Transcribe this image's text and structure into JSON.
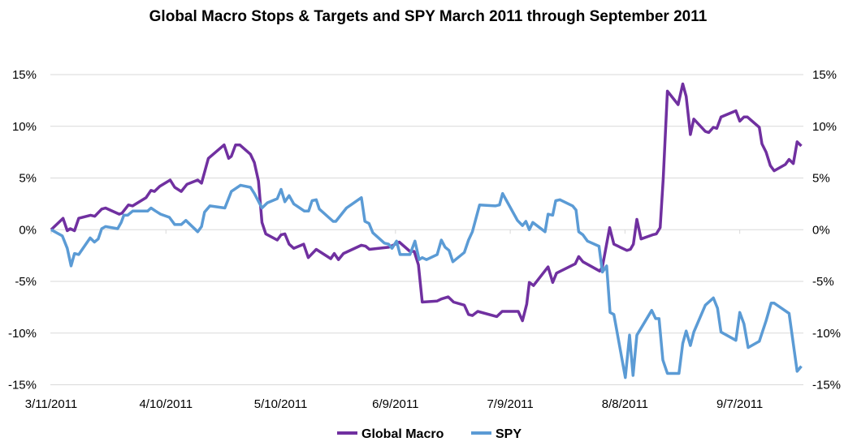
{
  "chart_data": {
    "type": "line",
    "title": "Global Macro Stops & Targets and SPY March 2011 through September 2011",
    "xlabel": "",
    "ylabel": "",
    "x_unit": "days since 3/11/2011",
    "xlim": [
      0,
      196
    ],
    "ylim": [
      -15,
      15
    ],
    "x_tick_values": [
      0,
      30,
      60,
      90,
      120,
      150,
      180
    ],
    "x_tick_labels": [
      "3/11/2011",
      "4/10/2011",
      "5/10/2011",
      "6/9/2011",
      "7/9/2011",
      "8/8/2011",
      "9/7/2011"
    ],
    "y_tick_values": [
      15,
      10,
      5,
      0,
      -5,
      -10,
      -15
    ],
    "y_tick_labels": [
      "15%",
      "10%",
      "5%",
      "0%",
      "-5%",
      "-10%",
      "-15%"
    ],
    "grid": true,
    "legend_position": "bottom",
    "series": [
      {
        "name": "Global Macro",
        "color": "#7030A0",
        "points": [
          [
            0,
            0
          ],
          [
            3.1,
            1.1
          ],
          [
            4.2,
            -0.1
          ],
          [
            5.0,
            0.1
          ],
          [
            6.1,
            -0.1
          ],
          [
            7.2,
            1.1
          ],
          [
            10.3,
            1.4
          ],
          [
            11.4,
            1.3
          ],
          [
            13.2,
            2.0
          ],
          [
            14.2,
            2.1
          ],
          [
            17.8,
            1.5
          ],
          [
            18.5,
            1.6
          ],
          [
            20.2,
            2.4
          ],
          [
            21.3,
            2.3
          ],
          [
            24.8,
            3.1
          ],
          [
            26.1,
            3.8
          ],
          [
            27.0,
            3.7
          ],
          [
            28.4,
            4.2
          ],
          [
            31.1,
            4.8
          ],
          [
            32.3,
            4.1
          ],
          [
            34.0,
            3.7
          ],
          [
            35.5,
            4.4
          ],
          [
            38.3,
            4.8
          ],
          [
            39.3,
            4.5
          ],
          [
            41.1,
            6.9
          ],
          [
            45.2,
            8.2
          ],
          [
            46.4,
            6.9
          ],
          [
            47.1,
            7.1
          ],
          [
            48.2,
            8.2
          ],
          [
            49.3,
            8.2
          ],
          [
            52.1,
            7.3
          ],
          [
            53.1,
            6.5
          ],
          [
            54.2,
            4.7
          ],
          [
            55.1,
            0.7
          ],
          [
            56.1,
            -0.4
          ],
          [
            59.1,
            -1.0
          ],
          [
            60.1,
            -0.5
          ],
          [
            61.1,
            -0.4
          ],
          [
            62.2,
            -1.4
          ],
          [
            63.4,
            -1.8
          ],
          [
            66.0,
            -1.4
          ],
          [
            67.2,
            -2.7
          ],
          [
            69.3,
            -1.9
          ],
          [
            73.1,
            -2.8
          ],
          [
            74.0,
            -2.3
          ],
          [
            75.1,
            -2.9
          ],
          [
            76.4,
            -2.3
          ],
          [
            81.1,
            -1.5
          ],
          [
            82.2,
            -1.6
          ],
          [
            83.2,
            -1.9
          ],
          [
            88.2,
            -1.7
          ],
          [
            90.0,
            -1.4
          ],
          [
            91.0,
            -1.2
          ],
          [
            93.8,
            -2.1
          ],
          [
            94.9,
            -2.1
          ],
          [
            96.0,
            -3.4
          ],
          [
            97.0,
            -7.0
          ],
          [
            100.9,
            -6.9
          ],
          [
            102.0,
            -6.7
          ],
          [
            103.8,
            -6.5
          ],
          [
            105.2,
            -7.0
          ],
          [
            108.0,
            -7.3
          ],
          [
            109.1,
            -8.2
          ],
          [
            110.1,
            -8.3
          ],
          [
            111.5,
            -7.9
          ],
          [
            116.5,
            -8.4
          ],
          [
            117.9,
            -7.9
          ],
          [
            122.1,
            -7.9
          ],
          [
            123.2,
            -8.8
          ],
          [
            124.3,
            -7.2
          ],
          [
            125.0,
            -5.1
          ],
          [
            126.1,
            -5.4
          ],
          [
            129.9,
            -3.6
          ],
          [
            131.1,
            -5.1
          ],
          [
            132.1,
            -4.2
          ],
          [
            137.0,
            -3.3
          ],
          [
            137.9,
            -2.6
          ],
          [
            139.0,
            -3.1
          ],
          [
            143.4,
            -4.0
          ],
          [
            144.1,
            -3.6
          ],
          [
            146.0,
            0.2
          ],
          [
            147.1,
            -1.4
          ],
          [
            150.5,
            -2.0
          ],
          [
            151.4,
            -1.9
          ],
          [
            152.2,
            -1.4
          ],
          [
            153.1,
            1.0
          ],
          [
            154.2,
            -0.9
          ],
          [
            157.2,
            -0.5
          ],
          [
            158.2,
            -0.4
          ],
          [
            159.2,
            0.2
          ],
          [
            160.0,
            5.0
          ],
          [
            161.1,
            13.4
          ],
          [
            163.9,
            12.1
          ],
          [
            165.1,
            14.1
          ],
          [
            166.0,
            12.9
          ],
          [
            167.1,
            9.2
          ],
          [
            168.0,
            10.7
          ],
          [
            171.0,
            9.5
          ],
          [
            171.9,
            9.4
          ],
          [
            173.1,
            9.9
          ],
          [
            174.0,
            9.8
          ],
          [
            175.1,
            10.9
          ],
          [
            179.0,
            11.5
          ],
          [
            180.0,
            10.5
          ],
          [
            181.1,
            10.9
          ],
          [
            182.0,
            10.9
          ],
          [
            185.1,
            9.9
          ],
          [
            185.8,
            8.3
          ],
          [
            186.9,
            7.5
          ],
          [
            188.0,
            6.2
          ],
          [
            189.0,
            5.7
          ],
          [
            191.9,
            6.3
          ],
          [
            192.9,
            6.8
          ],
          [
            194.0,
            6.4
          ],
          [
            195.0,
            8.5
          ],
          [
            196.1,
            8.1
          ]
        ]
      },
      {
        "name": "SPY",
        "color": "#5B9BD5",
        "points": [
          [
            0,
            0
          ],
          [
            2.9,
            -0.6
          ],
          [
            4.2,
            -1.8
          ],
          [
            5.2,
            -3.5
          ],
          [
            6.1,
            -2.3
          ],
          [
            7.2,
            -2.4
          ],
          [
            10.2,
            -0.8
          ],
          [
            11.3,
            -1.2
          ],
          [
            12.3,
            -0.9
          ],
          [
            13.2,
            0.1
          ],
          [
            14.2,
            0.3
          ],
          [
            17.4,
            0.1
          ],
          [
            18.3,
            0.7
          ],
          [
            19.0,
            1.4
          ],
          [
            20.0,
            1.4
          ],
          [
            21.3,
            1.8
          ],
          [
            25.2,
            1.8
          ],
          [
            26.1,
            2.1
          ],
          [
            27.3,
            1.8
          ],
          [
            28.6,
            1.5
          ],
          [
            30.9,
            1.2
          ],
          [
            32.3,
            0.5
          ],
          [
            34.0,
            0.5
          ],
          [
            35.2,
            0.9
          ],
          [
            38.3,
            -0.2
          ],
          [
            39.3,
            0.3
          ],
          [
            40.1,
            1.7
          ],
          [
            41.5,
            2.3
          ],
          [
            45.4,
            2.1
          ],
          [
            47.1,
            3.7
          ],
          [
            49.5,
            4.3
          ],
          [
            52.1,
            4.1
          ],
          [
            53.1,
            3.5
          ],
          [
            55.1,
            2.1
          ],
          [
            56.5,
            2.6
          ],
          [
            59.1,
            3.0
          ],
          [
            60.1,
            3.9
          ],
          [
            61.1,
            2.7
          ],
          [
            62.2,
            3.3
          ],
          [
            63.4,
            2.5
          ],
          [
            66.2,
            1.8
          ],
          [
            67.3,
            1.8
          ],
          [
            68.2,
            2.8
          ],
          [
            69.3,
            2.9
          ],
          [
            70.1,
            2.0
          ],
          [
            73.7,
            0.8
          ],
          [
            74.4,
            0.8
          ],
          [
            77.2,
            2.1
          ],
          [
            81.1,
            3.1
          ],
          [
            82.0,
            0.8
          ],
          [
            83.1,
            0.6
          ],
          [
            84.1,
            -0.3
          ],
          [
            87.1,
            -1.3
          ],
          [
            88.2,
            -1.4
          ],
          [
            89.1,
            -1.8
          ],
          [
            90.3,
            -1.1
          ],
          [
            91.2,
            -2.4
          ],
          [
            93.8,
            -2.4
          ],
          [
            95.1,
            -1.1
          ],
          [
            96.2,
            -2.9
          ],
          [
            97.0,
            -2.7
          ],
          [
            98.1,
            -2.9
          ],
          [
            100.9,
            -2.4
          ],
          [
            102.0,
            -1.0
          ],
          [
            103.0,
            -1.7
          ],
          [
            104.0,
            -2.0
          ],
          [
            105.0,
            -3.1
          ],
          [
            108.0,
            -2.2
          ],
          [
            109.1,
            -1.0
          ],
          [
            110.1,
            -0.2
          ],
          [
            112.0,
            2.4
          ],
          [
            116.1,
            2.3
          ],
          [
            117.2,
            2.4
          ],
          [
            118.0,
            3.5
          ],
          [
            121.9,
            0.9
          ],
          [
            123.2,
            0.4
          ],
          [
            124.1,
            0.8
          ],
          [
            125.0,
            0
          ],
          [
            125.9,
            0.7
          ],
          [
            129.1,
            -0.2
          ],
          [
            129.9,
            1.5
          ],
          [
            131.1,
            1.4
          ],
          [
            131.9,
            2.8
          ],
          [
            133.0,
            2.9
          ],
          [
            136.3,
            2.3
          ],
          [
            137.2,
            1.9
          ],
          [
            137.9,
            -0.2
          ],
          [
            139.0,
            -0.5
          ],
          [
            140.2,
            -1.1
          ],
          [
            143.2,
            -1.6
          ],
          [
            144.1,
            -4.1
          ],
          [
            145.2,
            -3.5
          ],
          [
            146.1,
            -8.0
          ],
          [
            147.1,
            -8.2
          ],
          [
            150.1,
            -14.3
          ],
          [
            151.2,
            -10.2
          ],
          [
            152.1,
            -14.1
          ],
          [
            153.1,
            -10.2
          ],
          [
            157.0,
            -7.8
          ],
          [
            158.0,
            -8.6
          ],
          [
            158.9,
            -8.6
          ],
          [
            159.9,
            -12.6
          ],
          [
            161.1,
            -13.9
          ],
          [
            164.1,
            -13.9
          ],
          [
            165.1,
            -11.0
          ],
          [
            166.0,
            -9.8
          ],
          [
            167.1,
            -11.2
          ],
          [
            168.0,
            -9.9
          ],
          [
            171.0,
            -7.3
          ],
          [
            173.1,
            -6.6
          ],
          [
            174.2,
            -7.6
          ],
          [
            175.1,
            -9.9
          ],
          [
            179.0,
            -10.7
          ],
          [
            180.0,
            -8.0
          ],
          [
            181.1,
            -9.1
          ],
          [
            182.2,
            -11.4
          ],
          [
            185.1,
            -10.8
          ],
          [
            186.9,
            -8.8
          ],
          [
            188.2,
            -7.1
          ],
          [
            189.0,
            -7.1
          ],
          [
            192.9,
            -8.1
          ],
          [
            195.0,
            -13.7
          ],
          [
            196.1,
            -13.2
          ]
        ]
      }
    ]
  }
}
